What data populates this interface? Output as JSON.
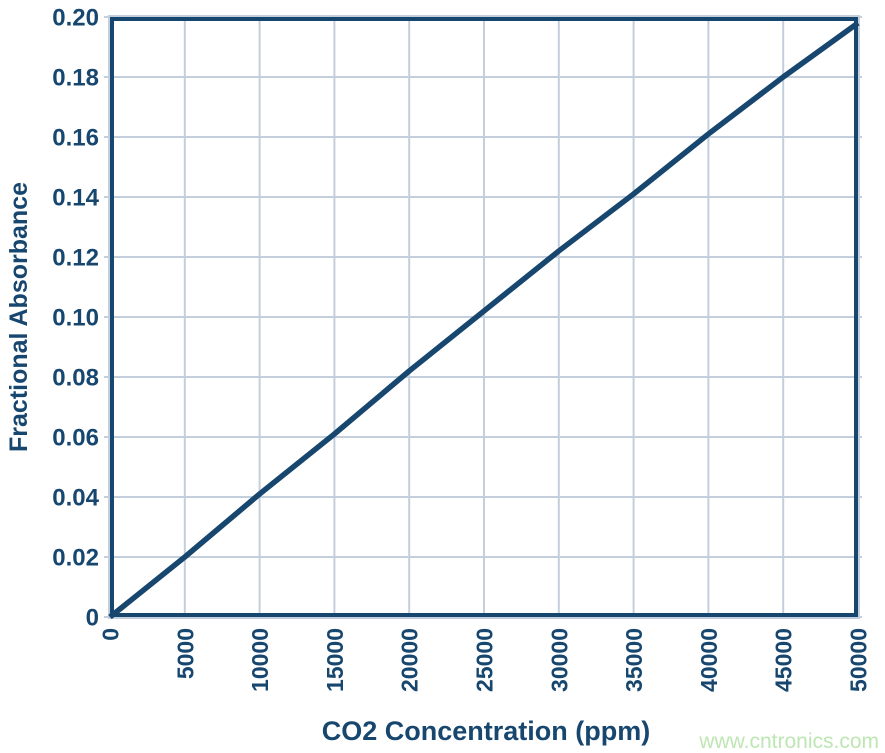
{
  "colors": {
    "navy": "#17466E",
    "grid": "#C4CFDD",
    "watermark_green": "#BEE6B3",
    "background": "#FFFFFF"
  },
  "watermark": {
    "text": "www.cntronics.com"
  },
  "chart_data": {
    "type": "line",
    "title": "",
    "xlabel": "CO2 Concentration (ppm)",
    "ylabel": "Fractional Absorbance",
    "xlim": [
      0,
      50000
    ],
    "ylim": [
      0,
      0.2
    ],
    "grid": true,
    "legend_position": "none",
    "xticks": [
      0,
      5000,
      10000,
      15000,
      20000,
      25000,
      30000,
      35000,
      40000,
      45000,
      50000
    ],
    "xticklabels": [
      "0",
      "5000",
      "10000",
      "15000",
      "20000",
      "25000",
      "30000",
      "35000",
      "40000",
      "45000",
      "50000"
    ],
    "yticks": [
      0,
      0.02,
      0.04,
      0.06,
      0.08,
      0.1,
      0.12,
      0.14,
      0.16,
      0.18,
      0.2
    ],
    "yticklabels": [
      "0",
      "0.02",
      "0.04",
      "0.06",
      "0.08",
      "0.10",
      "0.12",
      "0.14",
      "0.16",
      "0.18",
      "0.20"
    ],
    "series": [
      {
        "name": "Fractional Absorbance",
        "x": [
          0,
          5000,
          10000,
          15000,
          20000,
          25000,
          30000,
          35000,
          40000,
          45000,
          50000
        ],
        "y": [
          0,
          0.02,
          0.041,
          0.061,
          0.082,
          0.102,
          0.122,
          0.141,
          0.161,
          0.18,
          0.198
        ]
      }
    ]
  }
}
